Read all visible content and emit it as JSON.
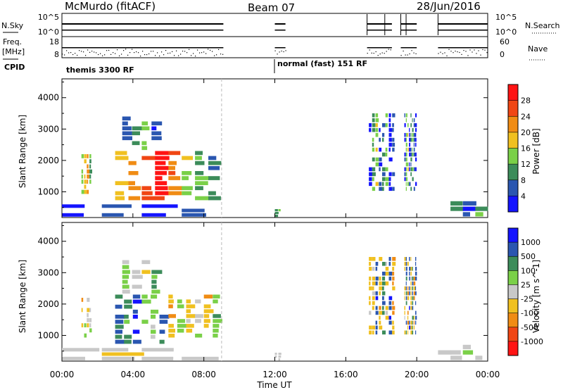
{
  "header": {
    "radar": "McMurdo (fitACF)",
    "beam": "Beam 07",
    "date": "28/Jun/2016"
  },
  "summary_panels": {
    "nsky_label": "N.Sky",
    "freq_label_1": "Freq.",
    "freq_label_2": "[MHz]",
    "cpid_label": "CPID",
    "nsky_ticks": [
      "10^5",
      "10^0"
    ],
    "freq_ticks": [
      "18",
      "8"
    ],
    "nsearch_label": "N.Search",
    "nsearch_ticks": [
      "10^5",
      "10^0"
    ],
    "nave_label": "Nave",
    "nave_ticks": [
      "60",
      "0"
    ],
    "cpid_segments": [
      {
        "label": "themis 3300 RF",
        "start_hr": 0.0
      },
      {
        "label": "normal (fast) 151 RF",
        "start_hr": 12.0
      }
    ]
  },
  "chart_data": [
    {
      "type": "heatmap",
      "title": "",
      "xlabel": "Time UT",
      "ylabel": "Slant Range [km]",
      "xlim": [
        0,
        24
      ],
      "ylim": [
        180,
        4600
      ],
      "x_ticks": [
        "00:00",
        "04:00",
        "08:00",
        "12:00",
        "16:00",
        "20:00",
        "00:00"
      ],
      "y_ticks": [
        1000,
        2000,
        3000,
        4000
      ],
      "colorbar": {
        "label": "Power [dB]",
        "ticks": [
          4,
          8,
          12,
          16,
          20,
          24,
          28
        ],
        "range": [
          0,
          32
        ],
        "colors": [
          "#1414ff",
          "#2a56b0",
          "#3c8c5a",
          "#7ad048",
          "#f0c020",
          "#f08c14",
          "#f04614",
          "#ff1414"
        ]
      },
      "patches": [
        {
          "t0": 0.0,
          "t1": 9.0,
          "r0": 180,
          "r1": 600,
          "values": [
            3,
            4,
            2,
            5
          ]
        },
        {
          "t0": 1.1,
          "t1": 1.7,
          "r0": 900,
          "r1": 2200,
          "values": [
            14,
            18,
            22,
            12
          ]
        },
        {
          "t0": 3.0,
          "t1": 9.0,
          "r0": 700,
          "r1": 2300,
          "values": [
            18,
            22,
            26,
            29,
            24,
            16,
            12,
            8
          ]
        },
        {
          "t0": 3.4,
          "t1": 5.6,
          "r0": 2300,
          "r1": 3400,
          "values": [
            6,
            10,
            14,
            4
          ]
        },
        {
          "t0": 12.0,
          "t1": 12.4,
          "r0": 180,
          "r1": 450,
          "values": [
            10,
            14
          ]
        },
        {
          "t0": 17.3,
          "t1": 18.8,
          "r0": 1000,
          "r1": 3500,
          "values": [
            3,
            12,
            16,
            4,
            8,
            14,
            2,
            6
          ]
        },
        {
          "t0": 19.3,
          "t1": 20.0,
          "r0": 1000,
          "r1": 3500,
          "values": [
            4,
            14,
            16,
            3,
            8,
            12,
            6,
            2
          ]
        },
        {
          "t0": 21.2,
          "t1": 24.0,
          "r0": 180,
          "r1": 700,
          "values": [
            6,
            10,
            4,
            12
          ]
        }
      ]
    },
    {
      "type": "heatmap",
      "title": "",
      "xlabel": "Time UT",
      "ylabel": "Slant Range [km]",
      "xlim": [
        0,
        24
      ],
      "ylim": [
        180,
        4600
      ],
      "x_ticks": [
        "00:00",
        "04:00",
        "08:00",
        "12:00",
        "16:00",
        "20:00",
        "00:00"
      ],
      "y_ticks": [
        1000,
        2000,
        3000,
        4000
      ],
      "colorbar": {
        "label": "Velocity [m s^-1]",
        "ticks": [
          "1000",
          "500",
          "100",
          "25",
          "-25",
          "-100",
          "-500",
          "-1000"
        ],
        "range": [
          -1200,
          1200
        ],
        "colors": [
          "#ff1414",
          "#f04614",
          "#f08c14",
          "#f0c020",
          "#c8c8c8",
          "#7ad048",
          "#3c8c5a",
          "#2a56b0",
          "#1414ff"
        ]
      },
      "patches": [
        {
          "t0": 0.0,
          "t1": 9.0,
          "r0": 180,
          "r1": 600,
          "values": [
            50,
            -60,
            20,
            -150
          ]
        },
        {
          "t0": 1.1,
          "t1": 1.7,
          "r0": 900,
          "r1": 2200,
          "values": [
            -300,
            200,
            -150,
            60
          ]
        },
        {
          "t0": 3.0,
          "t1": 6.0,
          "r0": 700,
          "r1": 2300,
          "values": [
            700,
            500,
            900,
            300,
            200,
            600
          ]
        },
        {
          "t0": 6.0,
          "t1": 9.0,
          "r0": 900,
          "r1": 2300,
          "values": [
            -300,
            200,
            -250,
            100,
            -350,
            300
          ]
        },
        {
          "t0": 3.4,
          "t1": 5.6,
          "r0": 2300,
          "r1": 3400,
          "values": [
            150,
            30,
            -60,
            400
          ]
        },
        {
          "t0": 12.0,
          "t1": 12.4,
          "r0": 180,
          "r1": 450,
          "values": [
            -60,
            20
          ]
        },
        {
          "t0": 17.3,
          "t1": 18.8,
          "r0": 1000,
          "r1": 3500,
          "values": [
            -200,
            -250,
            800,
            -300,
            600,
            -200,
            900,
            -400
          ]
        },
        {
          "t0": 19.3,
          "t1": 20.0,
          "r0": 1000,
          "r1": 3500,
          "values": [
            -250,
            700,
            -300,
            900,
            -200,
            600,
            -400,
            800
          ]
        },
        {
          "t0": 21.2,
          "t1": 24.0,
          "r0": 180,
          "r1": 700,
          "values": [
            60,
            -40,
            150,
            20
          ]
        }
      ]
    }
  ]
}
